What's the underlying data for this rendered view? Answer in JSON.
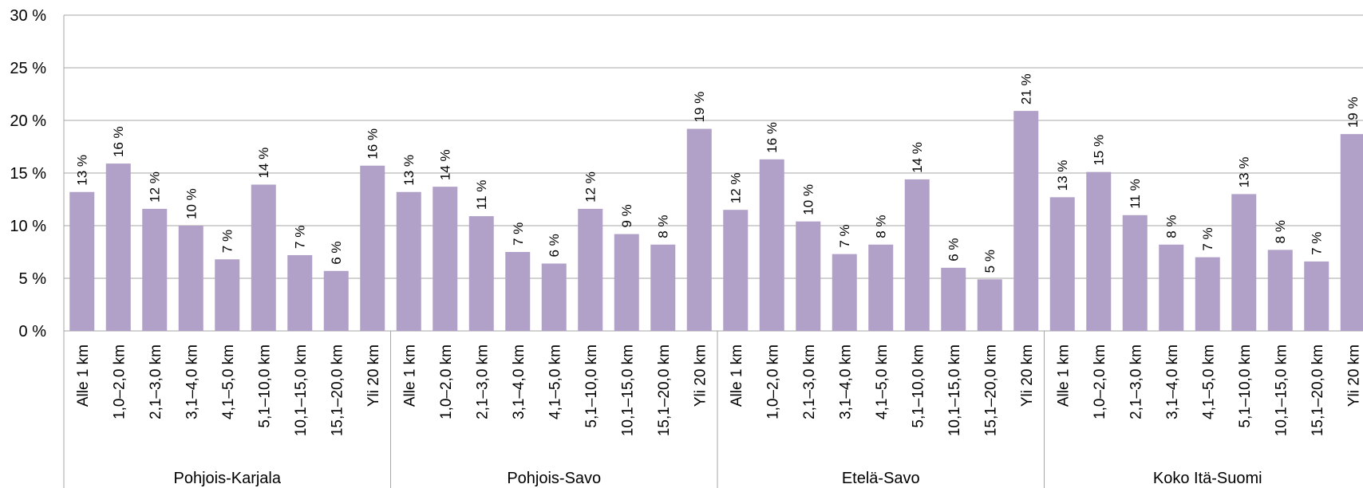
{
  "chart_data": {
    "type": "bar",
    "title": "",
    "xlabel": "",
    "ylabel": "",
    "ylim": [
      0,
      30
    ],
    "y_ticks": [
      "0 %",
      "5 %",
      "10 %",
      "15 %",
      "20 %",
      "25 %",
      "30 %"
    ],
    "grid": true,
    "bar_color": "#b1a0c7",
    "groups": [
      {
        "name": "Pohjois-Karjala",
        "categories": [
          "Alle 1 km",
          "1,0–2,0 km",
          "2,1–3,0 km",
          "3,1–4,0 km",
          "4,1–5,0 km",
          "5,1–10,0 km",
          "10,1–15,0 km",
          "15,1–20,0 km",
          "Yli 20 km"
        ],
        "values": [
          13.2,
          15.9,
          11.6,
          10.0,
          6.8,
          13.9,
          7.2,
          5.7,
          15.7
        ],
        "labels": [
          "13 %",
          "16 %",
          "12 %",
          "10 %",
          "7 %",
          "14 %",
          "7 %",
          "6 %",
          "16 %"
        ]
      },
      {
        "name": "Pohjois-Savo",
        "categories": [
          "Alle 1 km",
          "1,0–2,0 km",
          "2,1–3,0 km",
          "3,1–4,0 km",
          "4,1–5,0 km",
          "5,1–10,0 km",
          "10,1–15,0 km",
          "15,1–20,0 km",
          "Yli 20 km"
        ],
        "values": [
          13.2,
          13.7,
          10.9,
          7.5,
          6.4,
          11.6,
          9.2,
          8.2,
          19.2
        ],
        "labels": [
          "13 %",
          "14 %",
          "11 %",
          "7 %",
          "6 %",
          "12 %",
          "9 %",
          "8 %",
          "19 %"
        ]
      },
      {
        "name": "Etelä-Savo",
        "categories": [
          "Alle 1 km",
          "1,0–2,0 km",
          "2,1–3,0 km",
          "3,1–4,0 km",
          "4,1–5,0 km",
          "5,1–10,0 km",
          "10,1–15,0 km",
          "15,1–20,0 km",
          "Yli 20 km"
        ],
        "values": [
          11.5,
          16.3,
          10.4,
          7.3,
          8.2,
          14.4,
          6.0,
          4.9,
          20.9
        ],
        "labels": [
          "12 %",
          "16 %",
          "10 %",
          "7 %",
          "8 %",
          "14 %",
          "6 %",
          "5 %",
          "21 %"
        ]
      },
      {
        "name": "Koko Itä-Suomi",
        "categories": [
          "Alle 1 km",
          "1,0–2,0 km",
          "2,1–3,0 km",
          "3,1–4,0 km",
          "4,1–5,0 km",
          "5,1–10,0 km",
          "10,1–15,0 km",
          "15,1–20,0 km",
          "Yli 20 km"
        ],
        "values": [
          12.7,
          15.1,
          11.0,
          8.2,
          7.0,
          13.0,
          7.7,
          6.6,
          18.7
        ],
        "labels": [
          "13 %",
          "15 %",
          "11 %",
          "8 %",
          "7 %",
          "13 %",
          "8 %",
          "7 %",
          "19 %"
        ]
      }
    ]
  }
}
